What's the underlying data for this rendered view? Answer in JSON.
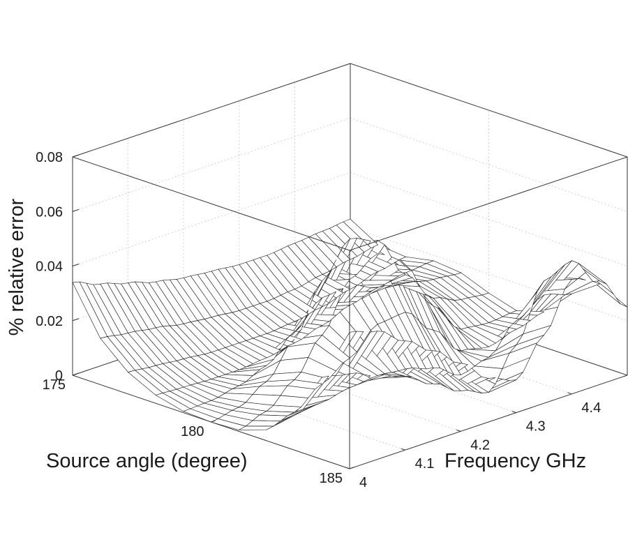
{
  "chart_data": {
    "type": "surface",
    "title": "",
    "xlabel": "Source angle (degree)",
    "ylabel": "Frequency GHz",
    "zlabel": "% relative error",
    "x_ticks": [
      "175",
      "180",
      "185"
    ],
    "y_ticks": [
      "4",
      "4.1",
      "4.2",
      "4.3",
      "4.4"
    ],
    "z_ticks": [
      "0",
      "0.02",
      "0.04",
      "0.06",
      "0.08"
    ],
    "xlim": [
      175,
      185
    ],
    "ylim": [
      4,
      4.5
    ],
    "zlim": [
      0,
      0.08
    ],
    "grid": true,
    "x": [
      175,
      176,
      177,
      178,
      179,
      180,
      181,
      182,
      183,
      184,
      185
    ],
    "y": [
      4.0,
      4.05,
      4.1,
      4.15,
      4.2,
      4.25,
      4.3,
      4.35,
      4.4,
      4.45,
      4.5
    ],
    "z": [
      [
        0.034,
        0.017,
        0.008,
        0.003,
        0.0005,
        0.0,
        0.0005,
        0.004,
        0.013,
        0.03,
        0.05
      ],
      [
        0.03,
        0.0155,
        0.007,
        0.0025,
        0.001,
        0.002,
        0.004,
        0.007,
        0.014,
        0.028,
        0.047
      ],
      [
        0.027,
        0.014,
        0.006,
        0.002,
        0.003,
        0.008,
        0.012,
        0.014,
        0.016,
        0.024,
        0.04
      ],
      [
        0.024,
        0.012,
        0.005,
        0.002,
        0.007,
        0.02,
        0.025,
        0.02,
        0.017,
        0.02,
        0.033
      ],
      [
        0.022,
        0.011,
        0.005,
        0.003,
        0.016,
        0.038,
        0.042,
        0.029,
        0.016,
        0.014,
        0.025
      ],
      [
        0.021,
        0.01,
        0.005,
        0.005,
        0.025,
        0.05,
        0.048,
        0.03,
        0.013,
        0.008,
        0.016
      ],
      [
        0.02,
        0.01,
        0.006,
        0.008,
        0.026,
        0.046,
        0.04,
        0.02,
        0.007,
        0.004,
        0.012
      ],
      [
        0.02,
        0.011,
        0.008,
        0.012,
        0.022,
        0.03,
        0.022,
        0.009,
        0.01,
        0.018,
        0.025
      ],
      [
        0.021,
        0.013,
        0.011,
        0.015,
        0.02,
        0.018,
        0.01,
        0.007,
        0.02,
        0.038,
        0.042
      ],
      [
        0.022,
        0.015,
        0.014,
        0.017,
        0.018,
        0.014,
        0.009,
        0.01,
        0.026,
        0.042,
        0.038
      ],
      [
        0.023,
        0.017,
        0.016,
        0.018,
        0.017,
        0.013,
        0.01,
        0.013,
        0.023,
        0.03,
        0.025
      ]
    ]
  }
}
